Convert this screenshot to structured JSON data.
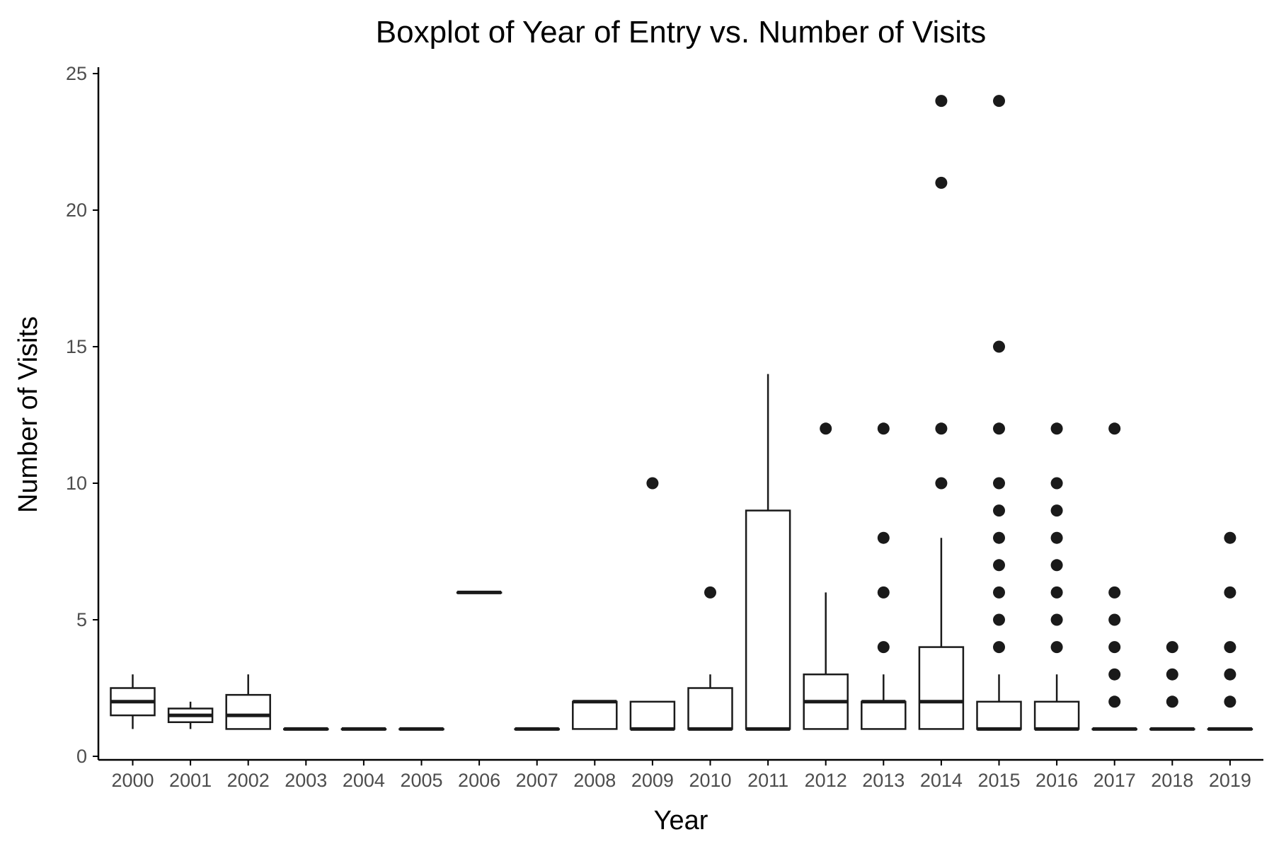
{
  "chart_data": {
    "type": "boxplot",
    "title": "Boxplot of Year of Entry vs. Number of Visits",
    "xlabel": "Year",
    "ylabel": "Number of Visits",
    "ylim": [
      -0.5,
      25
    ],
    "yticks": [
      0,
      5,
      10,
      15,
      20,
      25
    ],
    "grid": false,
    "colors": {
      "box_stroke": "#1a1a1a",
      "box_fill": "#ffffff",
      "outlier": "#1a1a1a",
      "axis": "#000000",
      "tick_text": "#4d4d4d"
    },
    "categories": [
      "2000",
      "2001",
      "2002",
      "2003",
      "2004",
      "2005",
      "2006",
      "2007",
      "2008",
      "2009",
      "2010",
      "2011",
      "2012",
      "2013",
      "2014",
      "2015",
      "2016",
      "2017",
      "2018",
      "2019"
    ],
    "boxes": [
      {
        "year": "2000",
        "min": 1,
        "q1": 1.5,
        "median": 2,
        "q3": 2.5,
        "max": 3,
        "outliers": []
      },
      {
        "year": "2001",
        "min": 1,
        "q1": 1.25,
        "median": 1.5,
        "q3": 1.75,
        "max": 2,
        "outliers": []
      },
      {
        "year": "2002",
        "min": 1,
        "q1": 1,
        "median": 1.5,
        "q3": 2.25,
        "max": 3,
        "outliers": []
      },
      {
        "year": "2003",
        "min": 1,
        "q1": 1,
        "median": 1,
        "q3": 1,
        "max": 1,
        "outliers": []
      },
      {
        "year": "2004",
        "min": 1,
        "q1": 1,
        "median": 1,
        "q3": 1,
        "max": 1,
        "outliers": []
      },
      {
        "year": "2005",
        "min": 1,
        "q1": 1,
        "median": 1,
        "q3": 1,
        "max": 1,
        "outliers": []
      },
      {
        "year": "2006",
        "min": 6,
        "q1": 6,
        "median": 6,
        "q3": 6,
        "max": 6,
        "outliers": []
      },
      {
        "year": "2007",
        "min": 1,
        "q1": 1,
        "median": 1,
        "q3": 1,
        "max": 1,
        "outliers": []
      },
      {
        "year": "2008",
        "min": 1,
        "q1": 1,
        "median": 2,
        "q3": 2,
        "max": 2,
        "outliers": []
      },
      {
        "year": "2009",
        "min": 1,
        "q1": 1,
        "median": 1,
        "q3": 2,
        "max": 2,
        "outliers": [
          10
        ]
      },
      {
        "year": "2010",
        "min": 1,
        "q1": 1,
        "median": 1,
        "q3": 2.5,
        "max": 3,
        "outliers": [
          6
        ]
      },
      {
        "year": "2011",
        "min": 1,
        "q1": 1,
        "median": 1,
        "q3": 9,
        "max": 14,
        "outliers": []
      },
      {
        "year": "2012",
        "min": 1,
        "q1": 1,
        "median": 2,
        "q3": 3,
        "max": 6,
        "outliers": [
          12
        ]
      },
      {
        "year": "2013",
        "min": 1,
        "q1": 1,
        "median": 2,
        "q3": 2,
        "max": 3,
        "outliers": [
          4,
          6,
          8,
          12
        ]
      },
      {
        "year": "2014",
        "min": 1,
        "q1": 1,
        "median": 2,
        "q3": 4,
        "max": 8,
        "outliers": [
          10,
          12,
          21,
          24
        ]
      },
      {
        "year": "2015",
        "min": 1,
        "q1": 1,
        "median": 1,
        "q3": 2,
        "max": 3,
        "outliers": [
          4,
          5,
          6,
          7,
          8,
          9,
          10,
          12,
          15,
          24
        ]
      },
      {
        "year": "2016",
        "min": 1,
        "q1": 1,
        "median": 1,
        "q3": 2,
        "max": 3,
        "outliers": [
          4,
          5,
          6,
          7,
          8,
          9,
          10,
          12
        ]
      },
      {
        "year": "2017",
        "min": 1,
        "q1": 1,
        "median": 1,
        "q3": 1,
        "max": 1,
        "outliers": [
          2,
          3,
          4,
          5,
          6,
          12
        ]
      },
      {
        "year": "2018",
        "min": 1,
        "q1": 1,
        "median": 1,
        "q3": 1,
        "max": 1,
        "outliers": [
          2,
          3,
          4
        ]
      },
      {
        "year": "2019",
        "min": 1,
        "q1": 1,
        "median": 1,
        "q3": 1,
        "max": 1,
        "outliers": [
          2,
          3,
          4,
          6,
          8
        ]
      }
    ]
  }
}
